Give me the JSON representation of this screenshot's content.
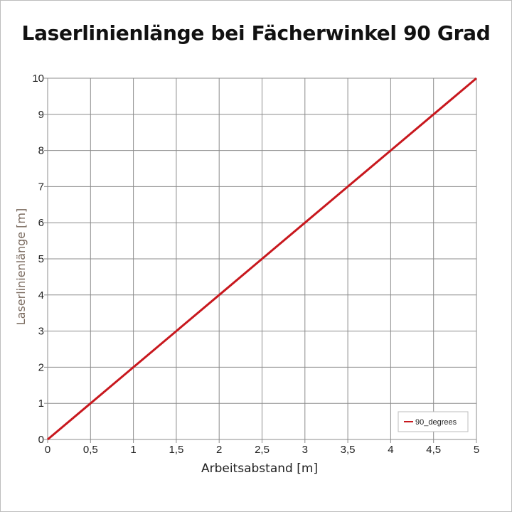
{
  "chart_data": {
    "type": "line",
    "title": "Laserlinienlänge bei Fächerwinkel 90 Grad",
    "xlabel": "Arbeitsabstand [m]",
    "ylabel": "Laserlinienlänge [m]",
    "xlim": [
      0,
      5
    ],
    "ylim": [
      0,
      10
    ],
    "x_ticks": [
      "0",
      "0,5",
      "1",
      "1,5",
      "2",
      "2,5",
      "3",
      "3,5",
      "4",
      "4,5",
      "5"
    ],
    "y_ticks": [
      "0",
      "1",
      "2",
      "3",
      "4",
      "5",
      "6",
      "7",
      "8",
      "9",
      "10"
    ],
    "grid": true,
    "legend_position": "bottom-right",
    "series": [
      {
        "name": "90_degrees",
        "color": "#c8181e",
        "x": [
          0,
          0.5,
          1,
          1.5,
          2,
          2.5,
          3,
          3.5,
          4,
          4.5,
          5
        ],
        "y": [
          0,
          1,
          2,
          3,
          4,
          5,
          6,
          7,
          8,
          9,
          10
        ]
      }
    ]
  }
}
